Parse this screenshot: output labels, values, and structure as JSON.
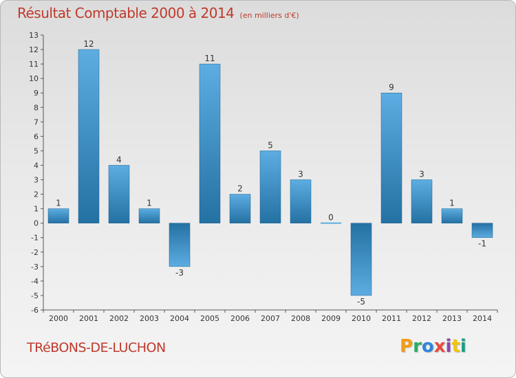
{
  "title": "Résultat Comptable 2000 à 2014",
  "subtitle": "(en milliers d'€)",
  "commune": "TRéBONS-DE-LUCHON",
  "logo": {
    "letters": [
      "P",
      "r",
      "o",
      "x",
      "i",
      "t",
      "i"
    ],
    "colors": [
      "#f39c12",
      "#27ae60",
      "#2e86de",
      "#e74c3c",
      "#8e44ad",
      "#f1c40f",
      "#16a085"
    ]
  },
  "chart_data": {
    "type": "bar",
    "categories": [
      "2000",
      "2001",
      "2002",
      "2003",
      "2004",
      "2005",
      "2006",
      "2007",
      "2008",
      "2009",
      "2010",
      "2011",
      "2012",
      "2013",
      "2014"
    ],
    "values": [
      1,
      12,
      4,
      1,
      -3,
      11,
      2,
      5,
      3,
      0,
      -5,
      9,
      3,
      1,
      -1
    ],
    "ylim": [
      -6,
      13
    ],
    "yticks": [
      -6,
      -5,
      -4,
      -3,
      -2,
      -1,
      0,
      1,
      2,
      3,
      4,
      5,
      6,
      7,
      8,
      9,
      10,
      11,
      12,
      13
    ],
    "grid": false,
    "colors": {
      "bar_light": "#5dade2",
      "bar_dark": "#2471a3",
      "axis": "#555555",
      "label": "#333333"
    }
  }
}
